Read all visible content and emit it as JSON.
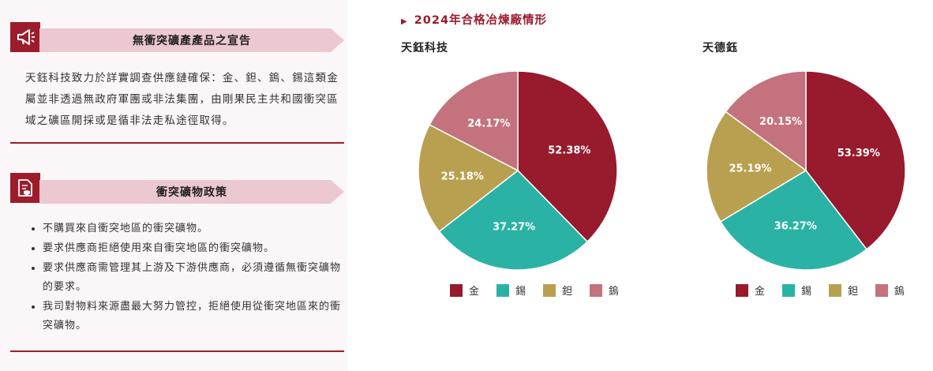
{
  "left": {
    "section1": {
      "title": "無衝突礦產產品之宣告",
      "body": "天鈺科技致力於詳實調查供應鏈確保：金、鉭、鎢、錫這類金屬並非透過無政府軍團或非法集團，由剛果民主共和國衝突區域之礦區開採或是循非法走私途徑取得。"
    },
    "section2": {
      "title": "衝突礦物政策",
      "items": [
        "不購買來自衝突地區的衝突礦物。",
        "要求供應商拒絕使用來自衝突地區的衝突礦物。",
        "要求供應商需管理其上游及下游供應商，必須遵循無衝突礦物的要求。",
        "我司對物料來源盡最大努力管控，拒絕使用從衝突地區來的衝突礦物。"
      ]
    }
  },
  "page_title": "2024年合格冶煉廠情形",
  "legend_labels": [
    "金",
    "錫",
    "鉭",
    "鎢"
  ],
  "colors": {
    "gold": "#971a2d",
    "tin": "#2ab3a5",
    "tantalum": "#b8a050",
    "tungsten": "#c4727d",
    "accent": "#9c1c2c"
  },
  "chart_data": [
    {
      "type": "pie",
      "title": "天鈺科技",
      "categories": [
        "金",
        "錫",
        "鉭",
        "鎢"
      ],
      "values": [
        52.38,
        37.27,
        25.18,
        24.17
      ],
      "labels": [
        "52.38%",
        "37.27%",
        "25.18%",
        "24.17%"
      ],
      "colors": [
        "#971a2d",
        "#2ab3a5",
        "#b8a050",
        "#c4727d"
      ],
      "legend": "bottom"
    },
    {
      "type": "pie",
      "title": "天德鈺",
      "categories": [
        "金",
        "錫",
        "鉭",
        "鎢"
      ],
      "values": [
        53.39,
        36.27,
        25.19,
        20.15
      ],
      "labels": [
        "53.39%",
        "36.27%",
        "25.19%",
        "20.15%"
      ],
      "colors": [
        "#971a2d",
        "#2ab3a5",
        "#b8a050",
        "#c4727d"
      ],
      "legend": "bottom"
    }
  ]
}
